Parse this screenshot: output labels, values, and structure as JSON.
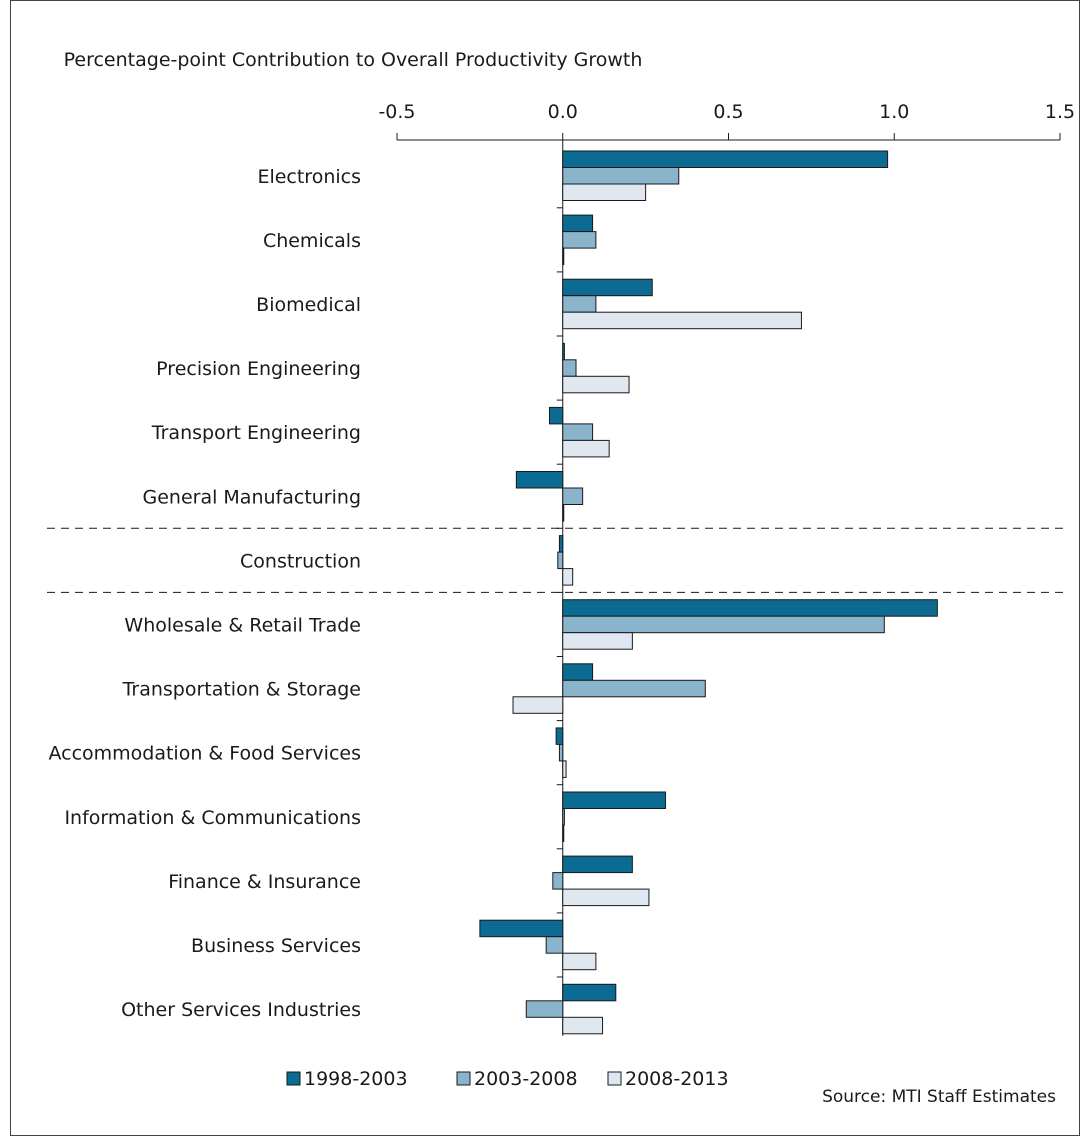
{
  "source_note": "Source: MTI Staff Estimates",
  "colors": {
    "s1": "#0b6b92",
    "s2": "#8ab3cc",
    "s3": "#dfe8f0",
    "stroke": "#1a1a1a"
  },
  "chart_data": {
    "type": "bar",
    "orientation": "horizontal",
    "title": "Percentage-point Contribution to Overall Productivity Growth",
    "xlim": [
      -0.5,
      1.5
    ],
    "xticks": [
      -0.5,
      0.0,
      0.5,
      1.0,
      1.5
    ],
    "xtick_labels": [
      "-0.5",
      "0.0",
      "0.5",
      "1.0",
      "1.5"
    ],
    "categories": [
      "Electronics",
      "Chemicals",
      "Biomedical",
      "Precision Engineering",
      "Transport Engineering",
      "General Manufacturing",
      "Construction",
      "Wholesale & Retail Trade",
      "Transportation & Storage",
      "Accommodation & Food Services",
      "Information & Communications",
      "Finance & Insurance",
      "Business Services",
      "Other Services Industries"
    ],
    "group_separators_after": [
      "General Manufacturing",
      "Construction"
    ],
    "series": [
      {
        "name": "1998-2003",
        "values": [
          0.98,
          0.09,
          0.27,
          0.005,
          -0.04,
          -0.14,
          -0.01,
          1.13,
          0.09,
          -0.02,
          0.31,
          0.21,
          -0.25,
          0.16
        ]
      },
      {
        "name": "2003-2008",
        "values": [
          0.35,
          0.1,
          0.1,
          0.04,
          0.09,
          0.06,
          -0.015,
          0.97,
          0.43,
          -0.01,
          0.005,
          -0.03,
          -0.05,
          -0.11
        ]
      },
      {
        "name": "2008-2013",
        "values": [
          0.25,
          0.0,
          0.72,
          0.2,
          0.14,
          0.0,
          0.03,
          0.21,
          -0.15,
          0.01,
          0.0,
          0.26,
          0.1,
          0.12
        ]
      }
    ],
    "legend_placement": "bottom"
  }
}
